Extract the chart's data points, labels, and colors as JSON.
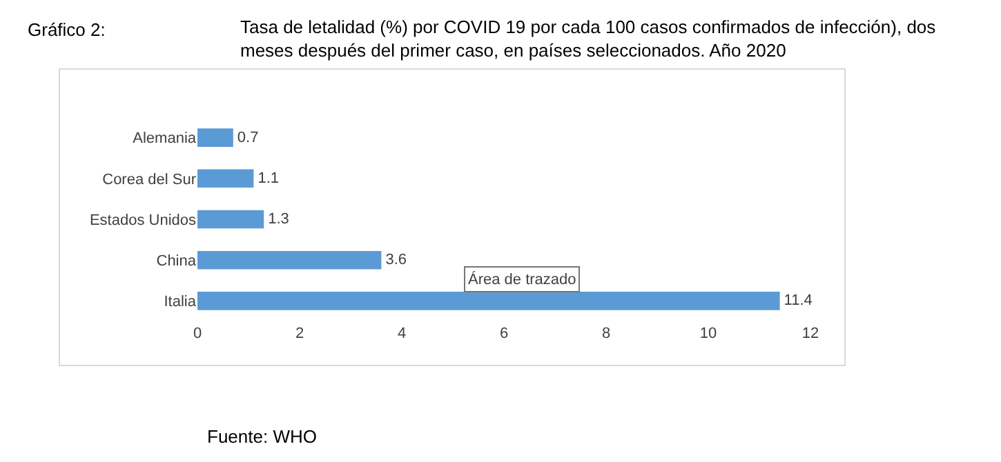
{
  "chart_data": {
    "type": "bar",
    "orientation": "horizontal",
    "title": "Gráfico 2:",
    "subtitle": "Tasa de letalidad (%) por COVID 19 por cada 100 casos confirmados de infección), dos meses después del primer caso, en países seleccionados. Año 2020",
    "categories": [
      "Alemania",
      "Corea del Sur",
      "Estados Unidos",
      "China",
      "Italia"
    ],
    "values": [
      0.7,
      1.1,
      1.3,
      3.6,
      11.4
    ],
    "color": "#5b9bd5",
    "xlim": [
      0,
      12
    ],
    "xticks": [
      0,
      2,
      4,
      6,
      8,
      10,
      12
    ],
    "grid": false,
    "data_labels": true,
    "annotations": [
      "Área de trazado",
      "Fuente: WHO"
    ]
  }
}
